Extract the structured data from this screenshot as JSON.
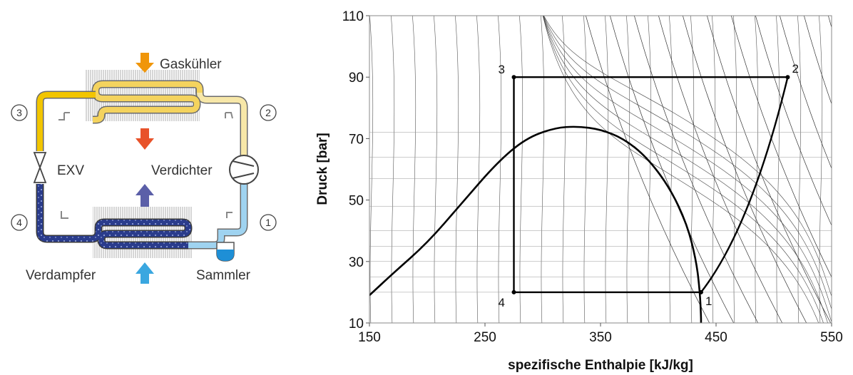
{
  "cycle_diagram": {
    "labels": {
      "gas_cooler": "Gaskühler",
      "compressor": "Verdichter",
      "expansion_valve": "EXV",
      "evaporator": "Verdampfer",
      "receiver": "Sammler"
    },
    "state_points": [
      "1",
      "2",
      "3",
      "4"
    ],
    "colors": {
      "hot_gas": "#f2c500",
      "warm_gas": "#f7e7a8",
      "liquid": "#2a3c8c",
      "suction": "#9fd3f0",
      "heat_out_arrow": "#f0960a",
      "heat_out_arrow_lower": "#e8522a",
      "heat_in_arrow": "#5b5fa8",
      "heat_in_arrow_lower": "#3aa7e0"
    }
  },
  "chart_data": {
    "type": "line",
    "title": "",
    "xlabel": "spezifische Enthalpie [kJ/kg]",
    "ylabel": "Druck [bar]",
    "xlim": [
      150,
      550
    ],
    "ylim": [
      10,
      110
    ],
    "x_ticks": [
      "150",
      "250",
      "350",
      "450",
      "550"
    ],
    "y_ticks": [
      "10",
      "30",
      "50",
      "70",
      "90",
      "110"
    ],
    "grid": false,
    "series": [
      {
        "name": "",
        "kind": "cycle",
        "points": [
          [
            437,
            20
          ],
          [
            512,
            90
          ],
          [
            275,
            90
          ],
          [
            275,
            20
          ],
          [
            437,
            20
          ]
        ]
      },
      {
        "name": "",
        "kind": "saturation_dome",
        "points": [
          [
            150,
            19
          ],
          [
            170,
            26
          ],
          [
            200,
            36
          ],
          [
            230,
            49
          ],
          [
            260,
            62
          ],
          [
            285,
            70
          ],
          [
            310,
            73.5
          ],
          [
            330,
            74
          ],
          [
            350,
            73
          ],
          [
            370,
            70
          ],
          [
            390,
            64
          ],
          [
            410,
            54
          ],
          [
            425,
            42
          ],
          [
            433,
            30
          ],
          [
            436,
            20
          ],
          [
            437,
            12
          ],
          [
            437,
            10
          ]
        ]
      }
    ],
    "point_labels": [
      {
        "label": "1",
        "x": 437,
        "y": 20
      },
      {
        "label": "2",
        "x": 512,
        "y": 90
      },
      {
        "label": "3",
        "x": 275,
        "y": 90
      },
      {
        "label": "4",
        "x": 275,
        "y": 20
      }
    ]
  }
}
